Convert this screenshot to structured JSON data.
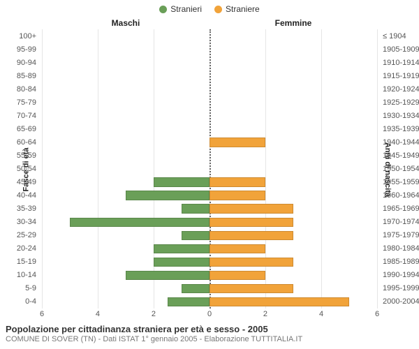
{
  "legend": {
    "male": {
      "label": "Stranieri",
      "color": "#6a9f58"
    },
    "female": {
      "label": "Straniere",
      "color": "#f1a33a"
    }
  },
  "headers": {
    "left": "Maschi",
    "right": "Femmine"
  },
  "axis": {
    "left_title": "Fasce di età",
    "right_title": "Anni di nascita",
    "xmax": 6,
    "xticks": [
      6,
      4,
      2,
      0,
      2,
      4,
      6
    ],
    "grid_color": "#e5e5e5",
    "center_line_color": "#666666",
    "background_color": "#ffffff"
  },
  "rows": [
    {
      "age": "100+",
      "birth": "≤ 1904",
      "m": 0,
      "f": 0
    },
    {
      "age": "95-99",
      "birth": "1905-1909",
      "m": 0,
      "f": 0
    },
    {
      "age": "90-94",
      "birth": "1910-1914",
      "m": 0,
      "f": 0
    },
    {
      "age": "85-89",
      "birth": "1915-1919",
      "m": 0,
      "f": 0
    },
    {
      "age": "80-84",
      "birth": "1920-1924",
      "m": 0,
      "f": 0
    },
    {
      "age": "75-79",
      "birth": "1925-1929",
      "m": 0,
      "f": 0
    },
    {
      "age": "70-74",
      "birth": "1930-1934",
      "m": 0,
      "f": 0
    },
    {
      "age": "65-69",
      "birth": "1935-1939",
      "m": 0,
      "f": 0
    },
    {
      "age": "60-64",
      "birth": "1940-1944",
      "m": 0,
      "f": 2
    },
    {
      "age": "55-59",
      "birth": "1945-1949",
      "m": 0,
      "f": 0
    },
    {
      "age": "50-54",
      "birth": "1950-1954",
      "m": 0,
      "f": 0
    },
    {
      "age": "45-49",
      "birth": "1955-1959",
      "m": 2,
      "f": 2
    },
    {
      "age": "40-44",
      "birth": "1960-1964",
      "m": 3,
      "f": 2
    },
    {
      "age": "35-39",
      "birth": "1965-1969",
      "m": 1,
      "f": 3
    },
    {
      "age": "30-34",
      "birth": "1970-1974",
      "m": 5,
      "f": 3
    },
    {
      "age": "25-29",
      "birth": "1975-1979",
      "m": 1,
      "f": 3
    },
    {
      "age": "20-24",
      "birth": "1980-1984",
      "m": 2,
      "f": 2
    },
    {
      "age": "15-19",
      "birth": "1985-1989",
      "m": 2,
      "f": 3
    },
    {
      "age": "10-14",
      "birth": "1990-1994",
      "m": 3,
      "f": 2
    },
    {
      "age": "5-9",
      "birth": "1995-1999",
      "m": 1,
      "f": 3
    },
    {
      "age": "0-4",
      "birth": "2000-2004",
      "m": 1.5,
      "f": 5
    }
  ],
  "footer": {
    "title": "Popolazione per cittadinanza straniera per età e sesso - 2005",
    "subtitle": "COMUNE DI SOVER (TN) - Dati ISTAT 1° gennaio 2005 - Elaborazione TUTTITALIA.IT"
  }
}
